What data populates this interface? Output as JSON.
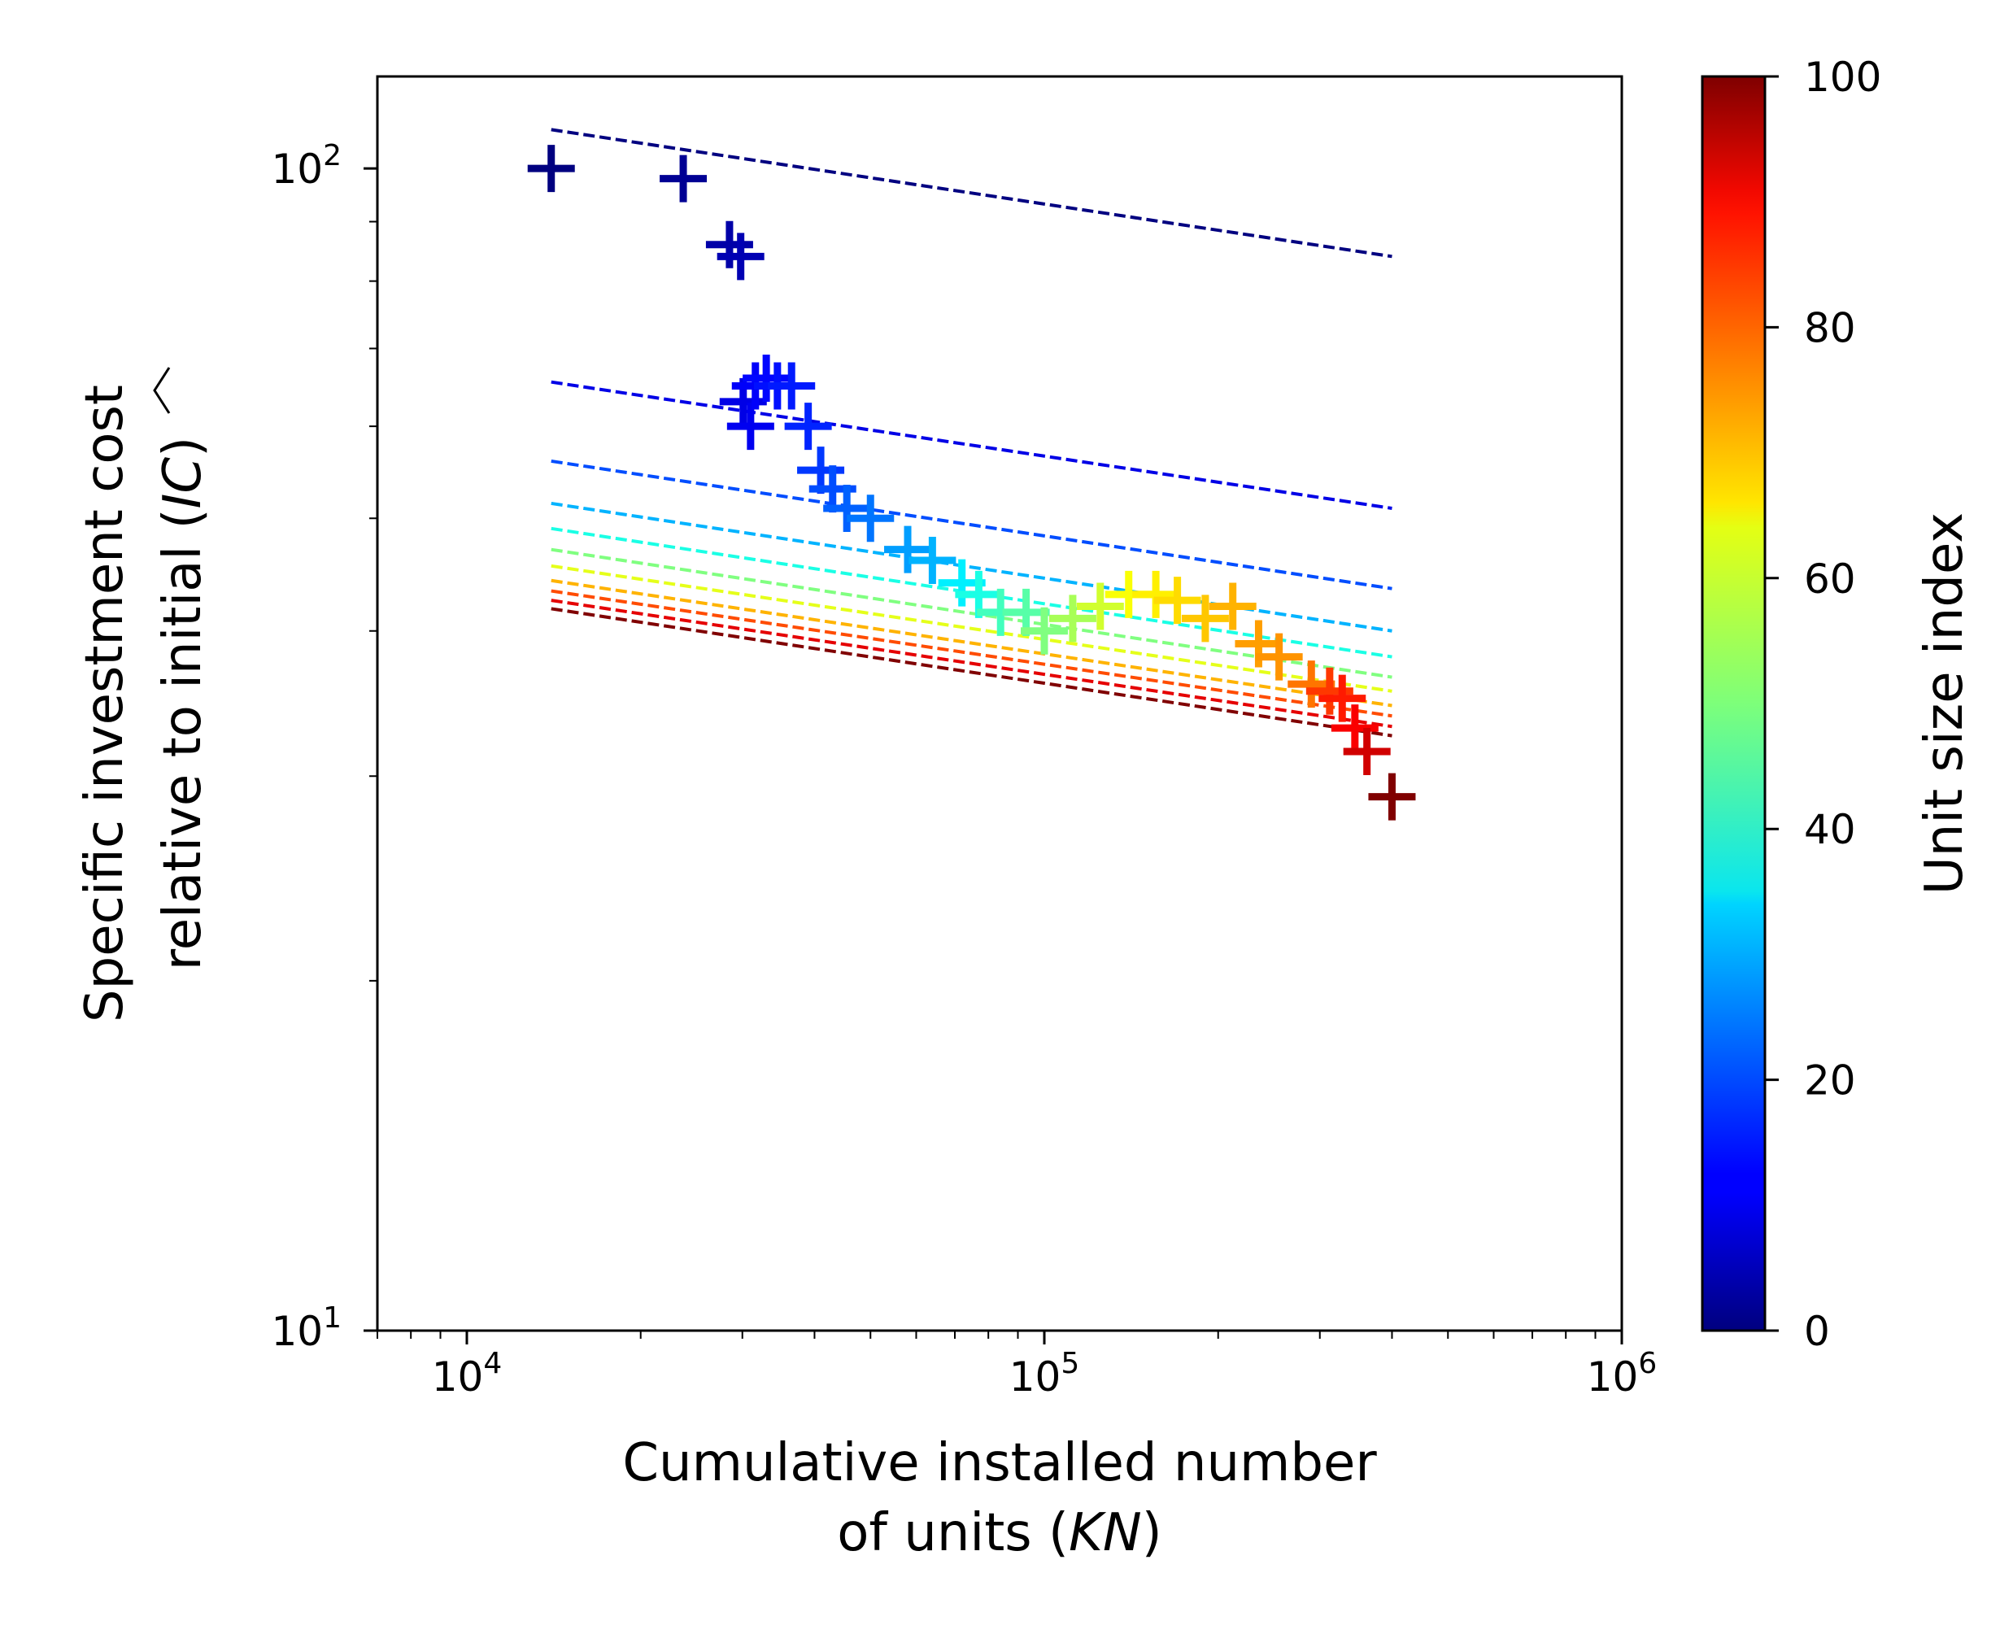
{
  "chart_data": {
    "type": "scatter",
    "x_scale": "log",
    "y_scale": "log",
    "xlim": [
      7000,
      1000000
    ],
    "ylim": [
      10,
      120
    ],
    "grid": false,
    "xlabel": {
      "prefix": "Cumulative installed number",
      "line2_prefix": "of units (",
      "symbol": "KN",
      "suffix": ")"
    },
    "ylabel": {
      "line1": "Specific investment cost",
      "line2_prefix": "relative to initial (",
      "symbol": "IC",
      "suffix": ")"
    },
    "x_ticks": [
      {
        "value": 10000,
        "base": "10",
        "exp": "4"
      },
      {
        "value": 100000,
        "base": "10",
        "exp": "5"
      },
      {
        "value": 1000000,
        "base": "10",
        "exp": "6"
      }
    ],
    "y_ticks": [
      {
        "value": 10,
        "base": "10",
        "exp": "1"
      },
      {
        "value": 100,
        "base": "10",
        "exp": "2"
      }
    ],
    "colorbar": {
      "label": "Unit size index",
      "range": [
        0,
        100
      ],
      "colormap": "jet",
      "ticks": [
        "0",
        "20",
        "40",
        "60",
        "80",
        "100"
      ]
    },
    "marker": "+",
    "points": [
      {
        "x": 14000,
        "y": 100,
        "c": 0
      },
      {
        "x": 23700,
        "y": 98,
        "c": 2
      },
      {
        "x": 28500,
        "y": 86,
        "c": 4
      },
      {
        "x": 29800,
        "y": 84,
        "c": 5
      },
      {
        "x": 30100,
        "y": 63,
        "c": 10
      },
      {
        "x": 31000,
        "y": 60,
        "c": 11
      },
      {
        "x": 31600,
        "y": 65,
        "c": 12
      },
      {
        "x": 33000,
        "y": 66,
        "c": 13
      },
      {
        "x": 34500,
        "y": 65,
        "c": 14
      },
      {
        "x": 36500,
        "y": 65,
        "c": 15
      },
      {
        "x": 39000,
        "y": 60,
        "c": 16
      },
      {
        "x": 41000,
        "y": 55,
        "c": 18
      },
      {
        "x": 43000,
        "y": 53,
        "c": 20
      },
      {
        "x": 45500,
        "y": 51,
        "c": 22
      },
      {
        "x": 50000,
        "y": 50,
        "c": 24
      },
      {
        "x": 58000,
        "y": 47,
        "c": 28
      },
      {
        "x": 64000,
        "y": 46,
        "c": 30
      },
      {
        "x": 72000,
        "y": 44,
        "c": 36
      },
      {
        "x": 77000,
        "y": 43,
        "c": 40
      },
      {
        "x": 84000,
        "y": 41.5,
        "c": 44
      },
      {
        "x": 93000,
        "y": 41.5,
        "c": 46
      },
      {
        "x": 100000,
        "y": 40,
        "c": 50
      },
      {
        "x": 112000,
        "y": 41,
        "c": 54
      },
      {
        "x": 125000,
        "y": 42,
        "c": 58
      },
      {
        "x": 140000,
        "y": 43,
        "c": 62
      },
      {
        "x": 156000,
        "y": 43,
        "c": 64
      },
      {
        "x": 170000,
        "y": 42.5,
        "c": 66
      },
      {
        "x": 190000,
        "y": 41,
        "c": 68
      },
      {
        "x": 212000,
        "y": 42,
        "c": 70
      },
      {
        "x": 235000,
        "y": 39,
        "c": 72
      },
      {
        "x": 255000,
        "y": 38,
        "c": 73
      },
      {
        "x": 290000,
        "y": 36,
        "c": 76
      },
      {
        "x": 312000,
        "y": 35.5,
        "c": 82
      },
      {
        "x": 328000,
        "y": 35,
        "c": 85
      },
      {
        "x": 345000,
        "y": 33,
        "c": 88
      },
      {
        "x": 362000,
        "y": 31.5,
        "c": 92
      },
      {
        "x": 400000,
        "y": 28.8,
        "c": 100
      }
    ],
    "dashed_lines": [
      {
        "x": [
          14000,
          400000
        ],
        "y": [
          108,
          84
        ],
        "c": 0
      },
      {
        "x": [
          14000,
          400000
        ],
        "y": [
          65.5,
          51
        ],
        "c": 10
      },
      {
        "x": [
          14000,
          400000
        ],
        "y": [
          56,
          43.5
        ],
        "c": 20
      },
      {
        "x": [
          14000,
          400000
        ],
        "y": [
          51.5,
          40
        ],
        "c": 30
      },
      {
        "x": [
          14000,
          400000
        ],
        "y": [
          49,
          38
        ],
        "c": 40
      },
      {
        "x": [
          14000,
          400000
        ],
        "y": [
          47,
          36.5
        ],
        "c": 50
      },
      {
        "x": [
          14000,
          400000
        ],
        "y": [
          45.5,
          35.5
        ],
        "c": 60
      },
      {
        "x": [
          14000,
          400000
        ],
        "y": [
          44.2,
          34.5
        ],
        "c": 70
      },
      {
        "x": [
          14000,
          400000
        ],
        "y": [
          43.3,
          33.8
        ],
        "c": 80
      },
      {
        "x": [
          14000,
          400000
        ],
        "y": [
          42.5,
          33.1
        ],
        "c": 90
      },
      {
        "x": [
          14000,
          400000
        ],
        "y": [
          41.8,
          32.5
        ],
        "c": 100
      }
    ]
  }
}
